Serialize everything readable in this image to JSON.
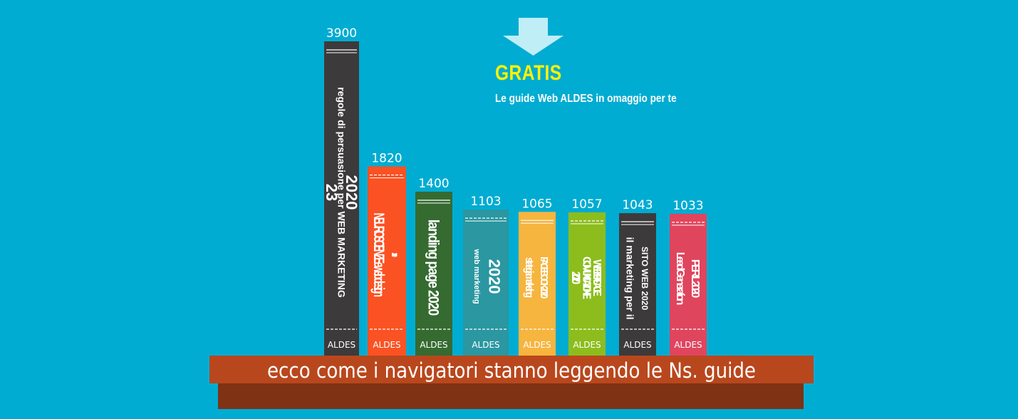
{
  "header": {
    "gratis": "GRATIS",
    "subtitle": "Le guide Web ALDES in omaggio per te"
  },
  "shelf": {
    "caption": "ecco come i navigatori stanno leggendo le Ns. guide"
  },
  "colors": {
    "background": "#00acd2",
    "arrow": "#bfeef7",
    "gratis": "#fff200",
    "shelf_top": "#b9471d",
    "shelf_bottom": "#7f3214"
  },
  "chart_data": {
    "type": "bar",
    "title": "",
    "xlabel": "",
    "ylabel": "",
    "categories": [
      "23 regole di persuasione per WEB MARKETING 2020",
      "NEUROSCIENZE e web design 2020",
      "landing page 2020",
      "web marketing 2020",
      "strategia marketing FACEBOOK 2020",
      "2020 COMUNICAZIONE WEB EFFICACE",
      "il marketing per il SITO WEB 2020",
      "Lead Generation PER IL 2020"
    ],
    "values": [
      3900,
      1820,
      1400,
      1103,
      1065,
      1057,
      1043,
      1033
    ],
    "value_labels": [
      "3900",
      "1820",
      "1400",
      "1103",
      "1065",
      "1057",
      "1043",
      "1033"
    ],
    "ylim": [
      0,
      3900
    ],
    "grid": false,
    "books": [
      {
        "lines": [
          "23",
          "regole di persuasione per WEB MARKETING",
          "2020"
        ],
        "brand": "ALDES",
        "color": "#3d3a3b"
      },
      {
        "lines": [
          "NEUROSCIENZE e web design",
          "2020"
        ],
        "brand": "ALDES",
        "color": "#fb5223"
      },
      {
        "lines": [
          "landing page 2020"
        ],
        "brand": "ALDES",
        "color": "#356b31"
      },
      {
        "lines": [
          "web marketing",
          "2020"
        ],
        "brand": "ALDES",
        "color": "#2a97a1"
      },
      {
        "lines": [
          "strategia marketing",
          "FACEBOOK 2020"
        ],
        "brand": "ALDES",
        "color": "#f6b53f"
      },
      {
        "lines": [
          "2020",
          "COMUNICAZIONE",
          "WEB EFFICACE"
        ],
        "brand": "ALDES",
        "color": "#8cbd1d"
      },
      {
        "lines": [
          "il marketing per il",
          "SITO WEB 2020"
        ],
        "brand": "ALDES",
        "color": "#3d3a3b"
      },
      {
        "lines": [
          "Lead Generation",
          "PER IL 2020"
        ],
        "brand": "ALDES",
        "color": "#e0455e"
      }
    ]
  }
}
